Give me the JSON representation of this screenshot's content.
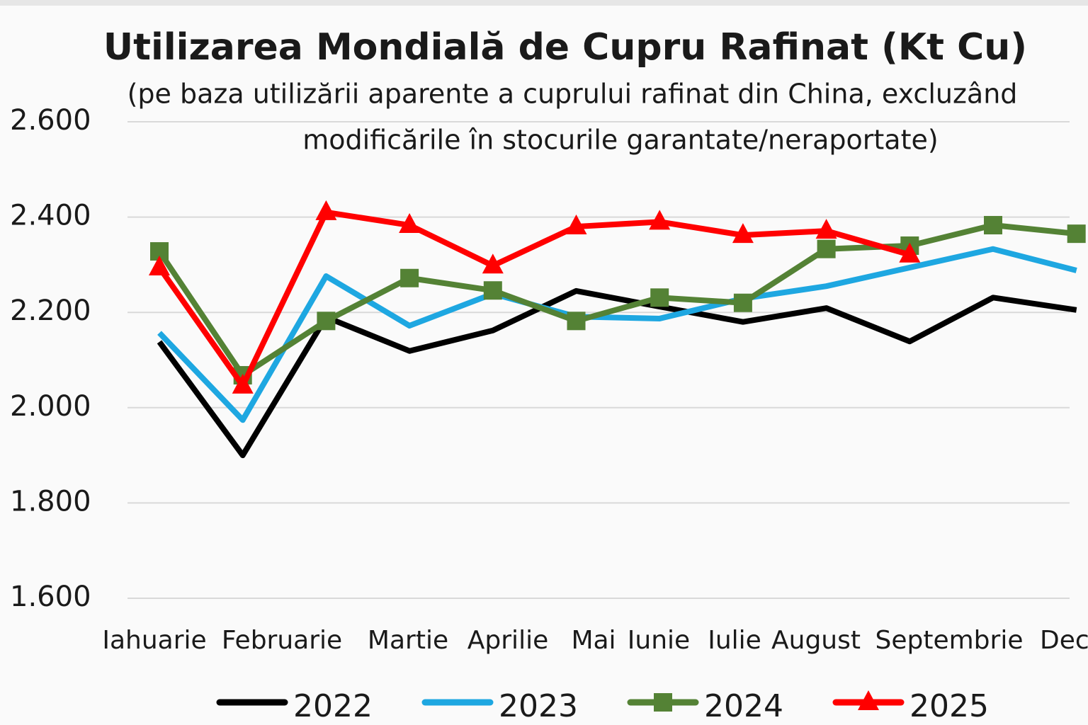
{
  "chart_data": {
    "type": "line",
    "title": "Utilizarea Mondială de Cupru Rafinat (Kt Cu)",
    "subtitle": [
      "(pe baza utilizării aparente a cuprului rafinat din China, excluzând",
      "modificările în stocurile garantate/neraportate)"
    ],
    "categories": [
      "Iahuarie",
      "Februarie",
      "Martie",
      "Aprilie",
      "Mai",
      "Iunie",
      "Iulie",
      "August",
      "Septembrie",
      null,
      null,
      "Dec"
    ],
    "series": [
      {
        "name": "2022",
        "color": "#000000",
        "marker": "none",
        "values": [
          2138,
          1900,
          2190,
          2119,
          2162,
          2245,
          2212,
          2180,
          2209,
          2139,
          2231,
          2205
        ]
      },
      {
        "name": "2023",
        "color": "#1ea7e1",
        "marker": "none",
        "values": [
          2157,
          1974,
          2276,
          2172,
          2239,
          2191,
          2187,
          2229,
          2255,
          2294,
          2333,
          2288
        ]
      },
      {
        "name": "2024",
        "color": "#548235",
        "marker": "square",
        "values": [
          2328,
          2068,
          2182,
          2272,
          2246,
          2182,
          2231,
          2220,
          2333,
          2340,
          2383,
          2365
        ]
      },
      {
        "name": "2025",
        "color": "#ff0000",
        "marker": "triangle",
        "values": [
          2294,
          2046,
          2410,
          2383,
          2298,
          2380,
          2390,
          2362,
          2371,
          2321,
          null,
          null
        ]
      }
    ],
    "ylim": [
      1600,
      2600
    ],
    "yticks": [
      {
        "value": 1600,
        "label": "1.600"
      },
      {
        "value": 1800,
        "label": "1.800"
      },
      {
        "value": 2000,
        "label": "2.000"
      },
      {
        "value": 2200,
        "label": "2.200"
      },
      {
        "value": 2400,
        "label": "2.400"
      },
      {
        "value": 2600,
        "label": "2.600"
      }
    ],
    "grid": true
  }
}
